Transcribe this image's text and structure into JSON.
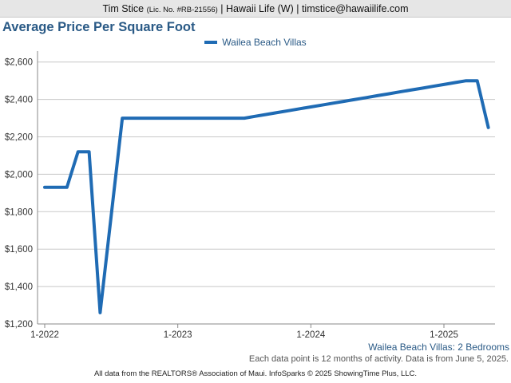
{
  "header": {
    "name": "Tim Stice",
    "license": "(Lic. No. #RB-21556)",
    "rest": "| Hawaii Life (W) | timstice@hawaiilife.com"
  },
  "subtitle": "Wailea Beach Villas: 2 Bedrooms",
  "note": "Each data point is 12 months of activity. Data is from June 5, 2025.",
  "footer": "All data from the REALTORS® Association of Maui. InfoSparks © 2025 ShowingTime Plus, LLC.",
  "chart_data": {
    "type": "line",
    "title": "Average Price Per Square Foot",
    "x_ticks": [
      "1-2022",
      "1-2023",
      "1-2024",
      "1-2025"
    ],
    "y_ticks": [
      "$1,200",
      "$1,400",
      "$1,600",
      "$1,800",
      "$2,000",
      "$2,200",
      "$2,400",
      "$2,600"
    ],
    "ylim": [
      1200,
      2650
    ],
    "xlim": [
      "2022-01",
      "2025-05"
    ],
    "grid": true,
    "legend_position": "top-center",
    "color": "#1f6bb4",
    "series": [
      {
        "name": "Wailea Beach Villas",
        "points": [
          [
            "2022-01",
            1930
          ],
          [
            "2022-02",
            1930
          ],
          [
            "2022-03",
            1930
          ],
          [
            "2022-04",
            2120
          ],
          [
            "2022-05",
            2120
          ],
          [
            "2022-06",
            1260
          ],
          [
            "2022-07",
            1780
          ],
          [
            "2022-08",
            2300
          ],
          [
            "2022-09",
            2300
          ],
          [
            "2022-10",
            2300
          ],
          [
            "2022-11",
            2300
          ],
          [
            "2022-12",
            2300
          ],
          [
            "2023-01",
            2300
          ],
          [
            "2023-02",
            2300
          ],
          [
            "2023-03",
            2300
          ],
          [
            "2023-04",
            2300
          ],
          [
            "2023-05",
            2300
          ],
          [
            "2023-06",
            2300
          ],
          [
            "2023-07",
            2300
          ],
          [
            "2023-08",
            2310
          ],
          [
            "2023-09",
            2320
          ],
          [
            "2023-10",
            2330
          ],
          [
            "2023-11",
            2340
          ],
          [
            "2023-12",
            2350
          ],
          [
            "2024-01",
            2360
          ],
          [
            "2024-02",
            2370
          ],
          [
            "2024-03",
            2380
          ],
          [
            "2024-04",
            2390
          ],
          [
            "2024-05",
            2400
          ],
          [
            "2024-06",
            2410
          ],
          [
            "2024-07",
            2420
          ],
          [
            "2024-08",
            2430
          ],
          [
            "2024-09",
            2440
          ],
          [
            "2024-10",
            2450
          ],
          [
            "2024-11",
            2460
          ],
          [
            "2024-12",
            2470
          ],
          [
            "2025-01",
            2480
          ],
          [
            "2025-02",
            2490
          ],
          [
            "2025-03",
            2500
          ],
          [
            "2025-04",
            2500
          ],
          [
            "2025-05",
            2250
          ]
        ]
      }
    ]
  }
}
